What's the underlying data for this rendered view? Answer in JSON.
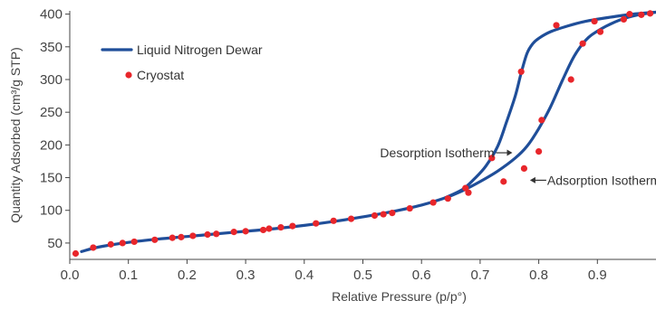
{
  "chart_data": {
    "type": "line",
    "xlabel": "Relative Pressure (p/p°)",
    "ylabel": "Quantity Adsorbed (cm³/g STP)",
    "xlim": [
      0,
      1.0
    ],
    "ylim": [
      25,
      405
    ],
    "xticks": [
      0.0,
      0.1,
      0.2,
      0.3,
      0.4,
      0.5,
      0.6,
      0.7,
      0.8,
      0.9
    ],
    "xtick_labels": [
      "0.0",
      "0.1",
      "0.2",
      "0.3",
      "0.4",
      "0.5",
      "0.6",
      "0.7",
      "0.8",
      "0.9"
    ],
    "yticks": [
      50,
      100,
      150,
      200,
      250,
      300,
      350,
      400
    ],
    "ytick_labels": [
      "50",
      "100",
      "150",
      "200",
      "250",
      "300",
      "350",
      "400"
    ],
    "grid": false,
    "legend_position": "top-left",
    "colors": {
      "line": "#1f4e99",
      "marker": "#e8262b",
      "axis": "#444444"
    },
    "series": [
      {
        "name": "Liquid Nitrogen Dewar",
        "kind": "line",
        "branch": "adsorption",
        "x": [
          0.02,
          0.05,
          0.1,
          0.15,
          0.2,
          0.25,
          0.3,
          0.35,
          0.4,
          0.45,
          0.5,
          0.55,
          0.6,
          0.64,
          0.67,
          0.7,
          0.73,
          0.76,
          0.78,
          0.8,
          0.82,
          0.84,
          0.86,
          0.88,
          0.9,
          0.93,
          0.96,
          1.0
        ],
        "y": [
          37,
          44,
          51,
          56,
          60,
          64,
          68,
          72,
          77,
          83,
          90,
          98,
          108,
          119,
          130,
          144,
          160,
          180,
          198,
          225,
          258,
          298,
          335,
          360,
          374,
          388,
          397,
          403
        ]
      },
      {
        "name": "Liquid Nitrogen Dewar",
        "kind": "line",
        "branch": "desorption",
        "x": [
          0.64,
          0.67,
          0.69,
          0.71,
          0.73,
          0.745,
          0.76,
          0.77,
          0.78,
          0.79,
          0.8,
          0.82,
          0.85,
          0.88,
          0.92,
          0.96,
          1.0
        ],
        "y": [
          119,
          132,
          148,
          168,
          198,
          235,
          275,
          310,
          340,
          355,
          363,
          373,
          382,
          389,
          395,
          400,
          403
        ]
      },
      {
        "name": "Cryostat",
        "kind": "scatter",
        "x": [
          0.01,
          0.04,
          0.07,
          0.09,
          0.11,
          0.145,
          0.175,
          0.19,
          0.21,
          0.235,
          0.25,
          0.28,
          0.3,
          0.33,
          0.34,
          0.36,
          0.38,
          0.42,
          0.45,
          0.48,
          0.52,
          0.535,
          0.55,
          0.58,
          0.62,
          0.645,
          0.675,
          0.68,
          0.72,
          0.74,
          0.77,
          0.775,
          0.8,
          0.805,
          0.83,
          0.855,
          0.875,
          0.895,
          0.905,
          0.945,
          0.955,
          0.975,
          0.99
        ],
        "y": [
          34,
          43,
          48,
          50,
          52,
          55,
          58,
          59,
          61,
          63,
          64,
          67,
          68,
          70,
          72,
          74,
          76,
          80,
          84,
          87,
          92,
          94,
          96,
          103,
          112,
          118,
          134,
          127,
          180,
          144,
          312,
          164,
          190,
          238,
          383,
          300,
          355,
          389,
          373,
          392,
          400,
          399,
          401
        ]
      }
    ],
    "annotations": [
      {
        "text": "Desorption Isotherm",
        "arrow": "right",
        "x": 0.755,
        "y": 188
      },
      {
        "text": "Adsorption Isotherm",
        "arrow": "left",
        "x": 0.785,
        "y": 146
      }
    ]
  }
}
